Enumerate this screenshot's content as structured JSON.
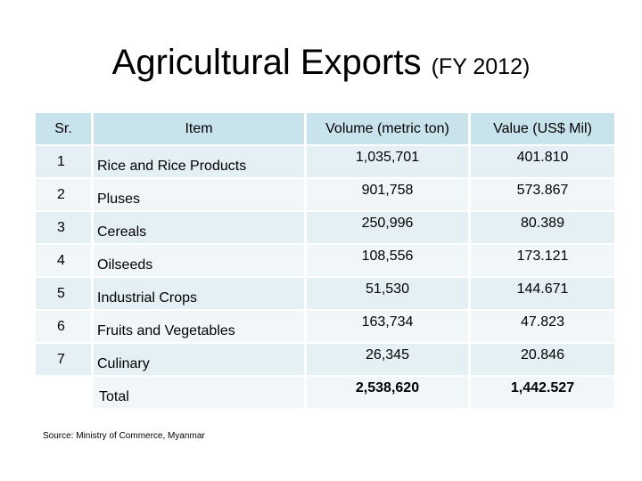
{
  "slide": {
    "title": "Agricultural Exports",
    "subtitle": "(FY 2012)",
    "source": "Source: Ministry of Commerce, Myanmar"
  },
  "table": {
    "headers": [
      "Sr.",
      "Item",
      "Volume (metric ton)",
      "Value (US$ Mil)"
    ],
    "rows": [
      {
        "sr": "1",
        "item": "Rice and Rice Products",
        "volume": "1,035,701",
        "value": "401.810"
      },
      {
        "sr": "2",
        "item": "Pluses",
        "volume": "901,758",
        "value": "573.867"
      },
      {
        "sr": "3",
        "item": "Cereals",
        "volume": "250,996",
        "value": "80.389"
      },
      {
        "sr": "4",
        "item": "Oilseeds",
        "volume": "108,556",
        "value": "173.121"
      },
      {
        "sr": "5",
        "item": "Industrial Crops",
        "volume": "51,530",
        "value": "144.671"
      },
      {
        "sr": "6",
        "item": "Fruits and Vegetables",
        "volume": "163,734",
        "value": "47.823"
      },
      {
        "sr": "7",
        "item": "Culinary",
        "volume": "26,345",
        "value": "20.846"
      }
    ],
    "total": {
      "label": "Total",
      "volume": "2,538,620",
      "value": "1,442.527"
    }
  },
  "colors": {
    "header_fill": "#c8e3ec",
    "row_fill_a": "#e4f0f4",
    "row_fill_b": "#f1f7f9"
  }
}
